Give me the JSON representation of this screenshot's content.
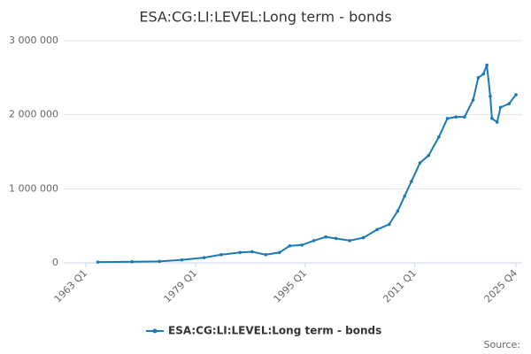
{
  "chart_data": {
    "type": "line",
    "title": "ESA:CG:LI:LEVEL:Long term - bonds",
    "source": "Source:",
    "x": [
      1964.75,
      1969.75,
      1973.75,
      1977,
      1980.25,
      1982.75,
      1985.5,
      1987.25,
      1989.25,
      1991.25,
      1992.75,
      1994.5,
      1996.25,
      1998,
      1999.5,
      2001.5,
      2003.5,
      2005.5,
      2007.25,
      2008.5,
      2009.5,
      2010.5,
      2011.75,
      2013,
      2014.5,
      2015.75,
      2017,
      2018.25,
      2019.5,
      2020.25,
      2021,
      2021.5,
      2022,
      2022.25,
      2023,
      2023.5,
      2024.75,
      2025.75
    ],
    "series": [
      {
        "name": "ESA:CG:LI:LEVEL:Long term - bonds",
        "color": "#1a7ab5",
        "values": [
          10000,
          15000,
          20000,
          40000,
          70000,
          110000,
          140000,
          150000,
          110000,
          140000,
          230000,
          240000,
          300000,
          350000,
          330000,
          300000,
          340000,
          450000,
          520000,
          700000,
          900000,
          1100000,
          1350000,
          1450000,
          1700000,
          1950000,
          1970000,
          1970000,
          2200000,
          2500000,
          2550000,
          2670000,
          2250000,
          1950000,
          1900000,
          2100000,
          2150000,
          2270000
        ]
      }
    ],
    "xlim": [
      1963,
      2025.75
    ],
    "xticks": [
      {
        "value": 1963,
        "label": "1963 Q1"
      },
      {
        "value": 1979,
        "label": "1979 Q1"
      },
      {
        "value": 1995,
        "label": "1995 Q1"
      },
      {
        "value": 2011,
        "label": "2011 Q1"
      },
      {
        "value": 2025.75,
        "label": "2025 Q4"
      }
    ],
    "ylim": [
      0,
      3000000
    ],
    "yticks": [
      0,
      {
        "value": 1000000,
        "label": "1 000 000"
      },
      {
        "value": 2000000,
        "label": "2 000 000"
      },
      {
        "value": 3000000,
        "label": "3 000 000"
      }
    ],
    "grid": true
  }
}
